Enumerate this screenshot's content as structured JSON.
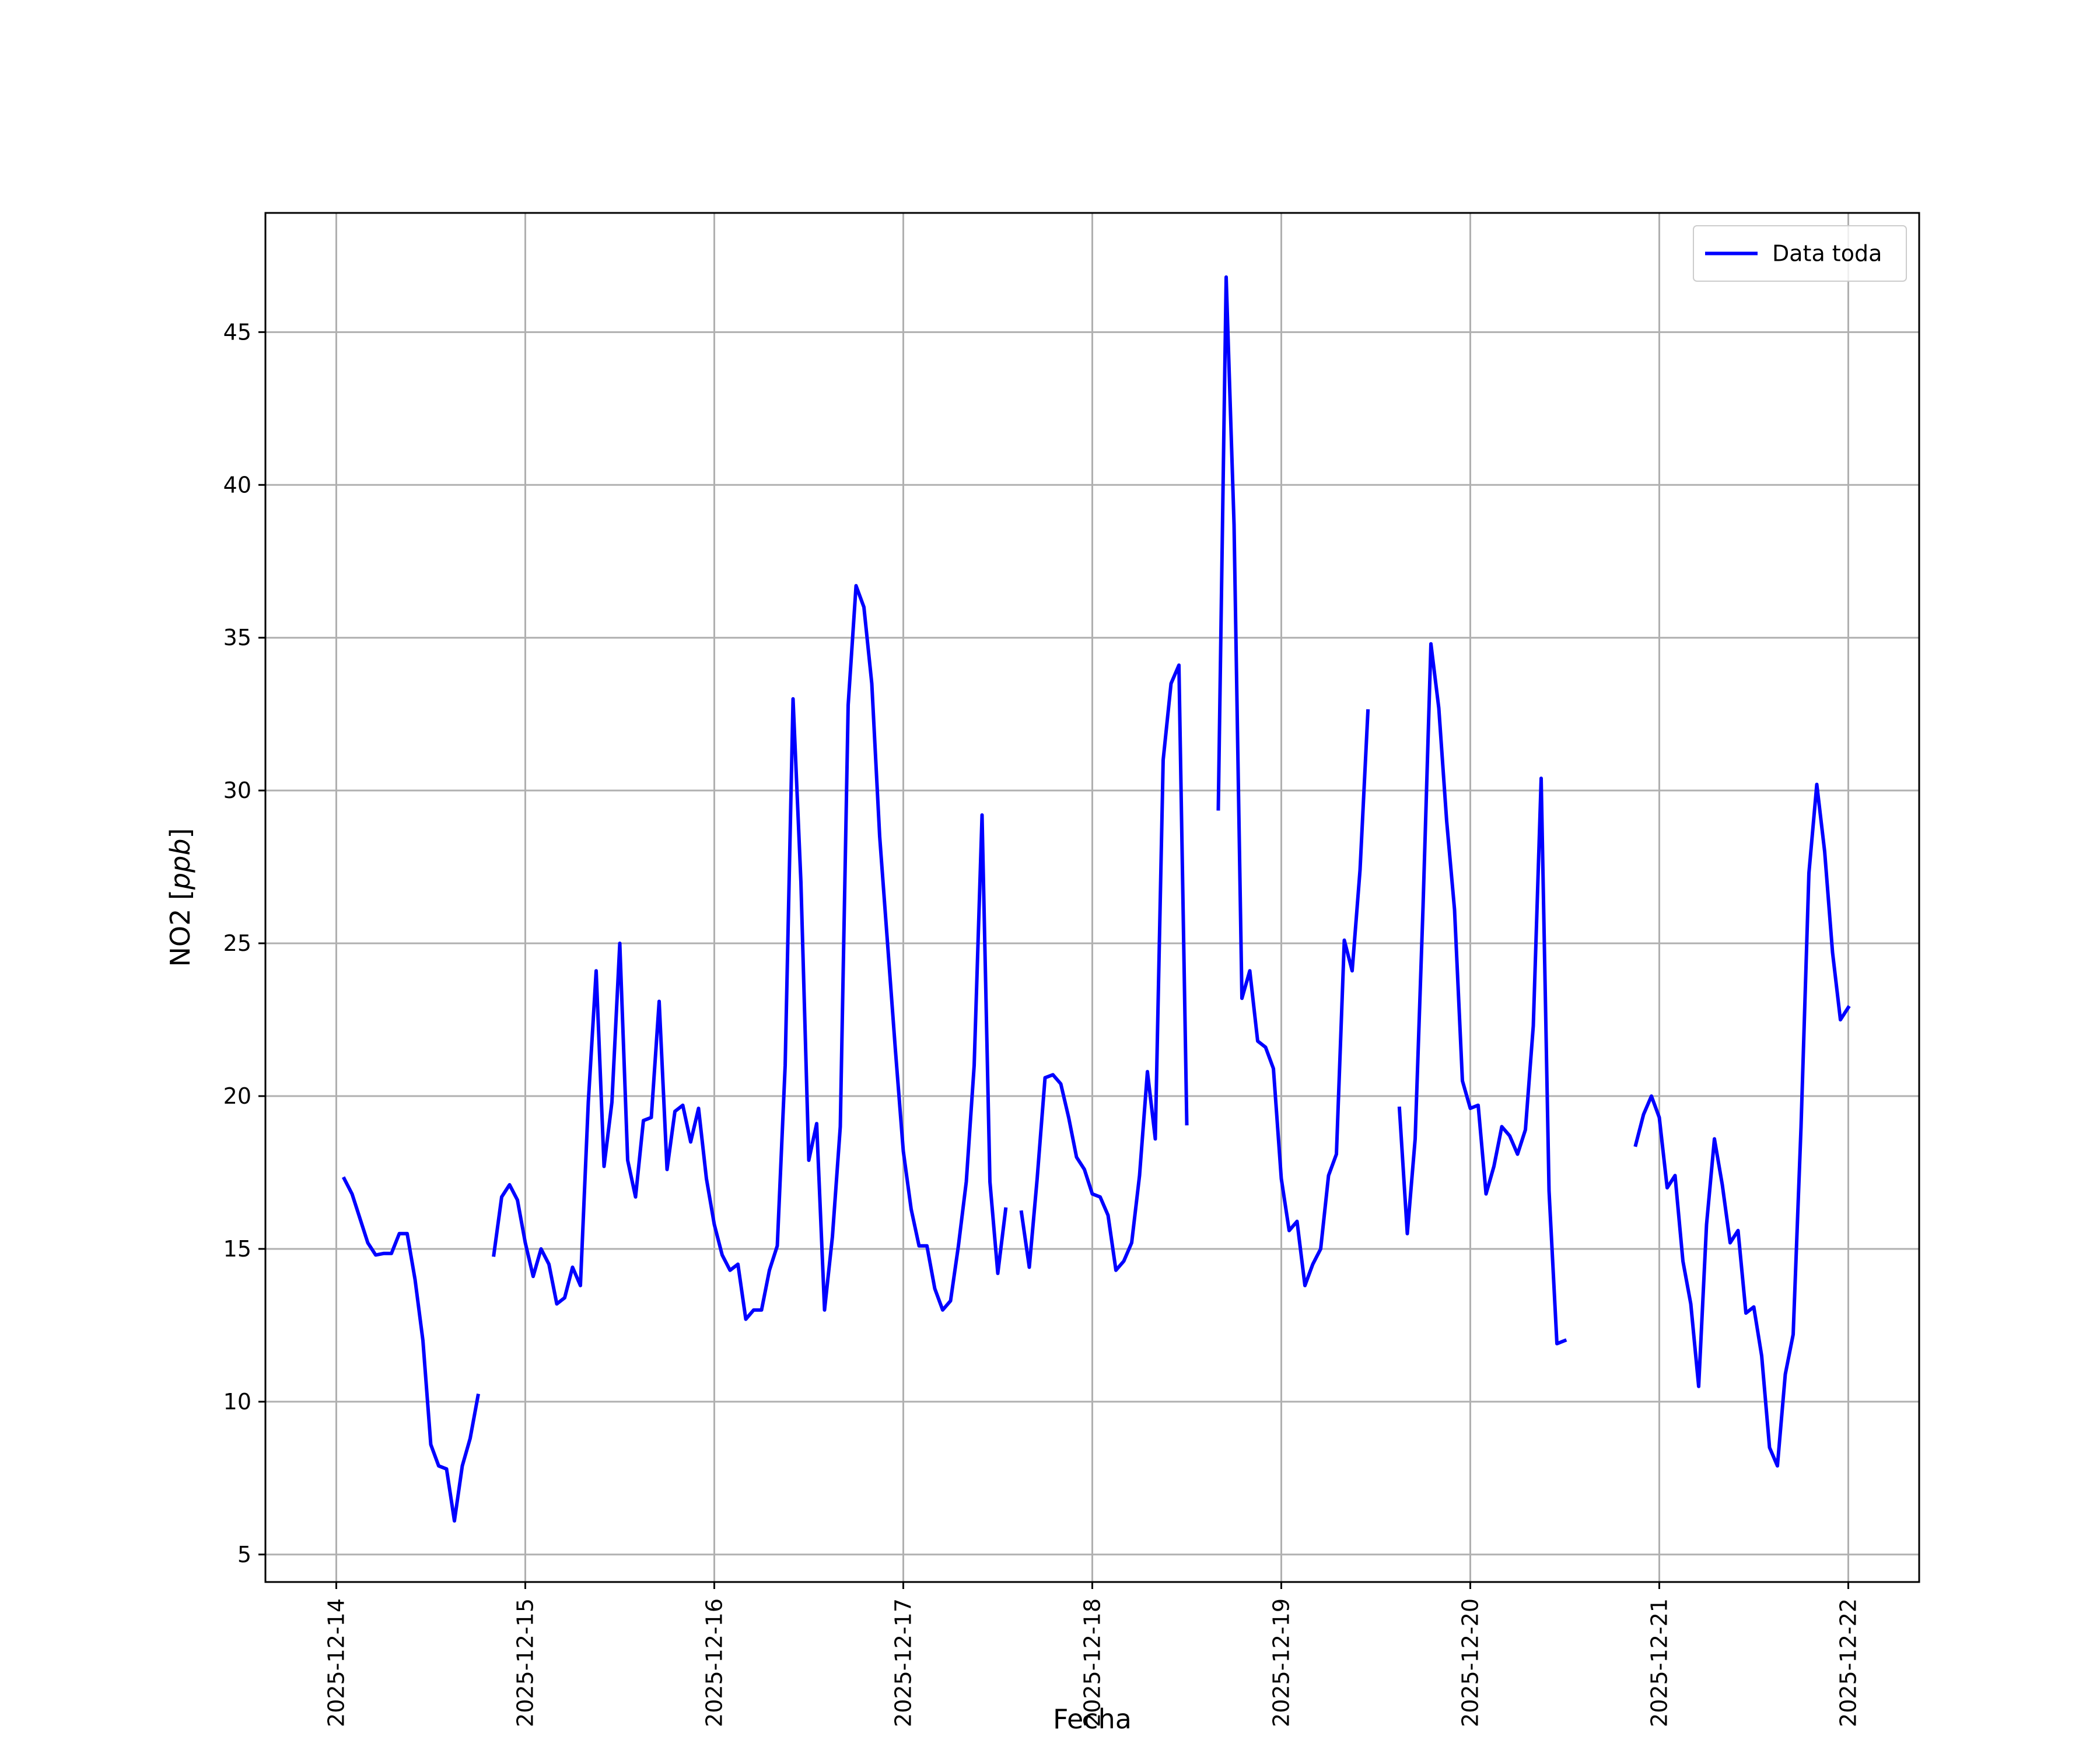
{
  "chart_data": {
    "type": "line",
    "title": "",
    "xlabel": "Fecha",
    "ylabel": "NO2 [ppb]",
    "ylabel_parts": {
      "main": "NO2 [",
      "italic": "ppb",
      "close": "]"
    },
    "xlim": [
      "2025-12-13T15:00",
      "2025-12-22T09:00"
    ],
    "ylim": [
      4.1,
      48.9
    ],
    "x_ticks": [
      "2025-12-14",
      "2025-12-15",
      "2025-12-16",
      "2025-12-17",
      "2025-12-18",
      "2025-12-19",
      "2025-12-20",
      "2025-12-21",
      "2025-12-22"
    ],
    "y_ticks": [
      5,
      10,
      15,
      20,
      25,
      30,
      35,
      40,
      45
    ],
    "grid": true,
    "legend": {
      "location": "top-right",
      "entries": [
        "Data toda"
      ]
    },
    "colors": {
      "line": "#0000ff",
      "grid": "#b0b0b0",
      "axis": "#000000"
    },
    "series": [
      {
        "name": "Data toda",
        "segments": [
          [
            [
              "2025-12-14T01:00",
              17.3
            ],
            [
              "2025-12-14T02:00",
              16.8
            ],
            [
              "2025-12-14T03:00",
              16.0
            ],
            [
              "2025-12-14T04:00",
              15.2
            ],
            [
              "2025-12-14T05:00",
              14.8
            ],
            [
              "2025-12-14T06:00",
              14.85
            ],
            [
              "2025-12-14T07:00",
              14.85
            ],
            [
              "2025-12-14T08:00",
              15.5
            ],
            [
              "2025-12-14T09:00",
              15.5
            ],
            [
              "2025-12-14T10:00",
              14.0
            ],
            [
              "2025-12-14T11:00",
              12.0
            ],
            [
              "2025-12-14T12:00",
              8.6
            ],
            [
              "2025-12-14T13:00",
              7.9
            ],
            [
              "2025-12-14T14:00",
              7.8
            ],
            [
              "2025-12-14T15:00",
              6.1
            ],
            [
              "2025-12-14T16:00",
              7.9
            ],
            [
              "2025-12-14T17:00",
              8.8
            ],
            [
              "2025-12-14T18:00",
              10.2
            ]
          ],
          [
            [
              "2025-12-14T20:00",
              14.8
            ],
            [
              "2025-12-14T21:00",
              16.7
            ],
            [
              "2025-12-14T22:00",
              17.1
            ],
            [
              "2025-12-14T23:00",
              16.6
            ],
            [
              "2025-12-15T00:00",
              15.2
            ],
            [
              "2025-12-15T01:00",
              14.1
            ],
            [
              "2025-12-15T02:00",
              15.0
            ],
            [
              "2025-12-15T03:00",
              14.5
            ],
            [
              "2025-12-15T04:00",
              13.2
            ],
            [
              "2025-12-15T05:00",
              13.4
            ],
            [
              "2025-12-15T06:00",
              14.4
            ],
            [
              "2025-12-15T07:00",
              13.8
            ],
            [
              "2025-12-15T08:00",
              19.8
            ],
            [
              "2025-12-15T09:00",
              24.1
            ],
            [
              "2025-12-15T10:00",
              17.7
            ],
            [
              "2025-12-15T11:00",
              19.8
            ],
            [
              "2025-12-15T12:00",
              25.0
            ],
            [
              "2025-12-15T13:00",
              17.9
            ],
            [
              "2025-12-15T14:00",
              16.7
            ],
            [
              "2025-12-15T15:00",
              19.2
            ],
            [
              "2025-12-15T16:00",
              19.3
            ],
            [
              "2025-12-15T17:00",
              23.1
            ],
            [
              "2025-12-15T18:00",
              17.6
            ],
            [
              "2025-12-15T19:00",
              19.5
            ],
            [
              "2025-12-15T20:00",
              19.7
            ],
            [
              "2025-12-15T21:00",
              18.5
            ],
            [
              "2025-12-15T22:00",
              19.6
            ],
            [
              "2025-12-15T23:00",
              17.3
            ],
            [
              "2025-12-16T00:00",
              15.8
            ],
            [
              "2025-12-16T01:00",
              14.8
            ],
            [
              "2025-12-16T02:00",
              14.3
            ],
            [
              "2025-12-16T03:00",
              14.5
            ],
            [
              "2025-12-16T04:00",
              12.7
            ],
            [
              "2025-12-16T05:00",
              13.0
            ],
            [
              "2025-12-16T06:00",
              13.0
            ],
            [
              "2025-12-16T07:00",
              14.3
            ],
            [
              "2025-12-16T08:00",
              15.1
            ],
            [
              "2025-12-16T09:00",
              21.0
            ],
            [
              "2025-12-16T10:00",
              33.0
            ],
            [
              "2025-12-16T11:00",
              27.0
            ],
            [
              "2025-12-16T12:00",
              17.9
            ],
            [
              "2025-12-16T13:00",
              19.1
            ],
            [
              "2025-12-16T14:00",
              13.0
            ],
            [
              "2025-12-16T15:00",
              15.4
            ],
            [
              "2025-12-16T16:00",
              19.0
            ],
            [
              "2025-12-16T17:00",
              32.8
            ],
            [
              "2025-12-16T18:00",
              36.7
            ],
            [
              "2025-12-16T19:00",
              36.0
            ],
            [
              "2025-12-16T20:00",
              33.5
            ],
            [
              "2025-12-16T21:00",
              28.5
            ],
            [
              "2025-12-16T22:00",
              25.0
            ],
            [
              "2025-12-16T23:00",
              21.5
            ],
            [
              "2025-12-17T00:00",
              18.2
            ],
            [
              "2025-12-17T01:00",
              16.3
            ],
            [
              "2025-12-17T02:00",
              15.1
            ],
            [
              "2025-12-17T03:00",
              15.1
            ],
            [
              "2025-12-17T04:00",
              13.7
            ],
            [
              "2025-12-17T05:00",
              13.0
            ],
            [
              "2025-12-17T06:00",
              13.3
            ],
            [
              "2025-12-17T07:00",
              15.1
            ],
            [
              "2025-12-17T08:00",
              17.2
            ],
            [
              "2025-12-17T09:00",
              21.0
            ],
            [
              "2025-12-17T10:00",
              29.2
            ],
            [
              "2025-12-17T11:00",
              17.2
            ],
            [
              "2025-12-17T12:00",
              14.2
            ],
            [
              "2025-12-17T13:00",
              16.3
            ]
          ],
          [
            [
              "2025-12-17T15:00",
              16.2
            ],
            [
              "2025-12-17T16:00",
              14.4
            ],
            [
              "2025-12-17T17:00",
              17.3
            ],
            [
              "2025-12-17T18:00",
              20.6
            ],
            [
              "2025-12-17T19:00",
              20.7
            ],
            [
              "2025-12-17T20:00",
              20.4
            ],
            [
              "2025-12-17T21:00",
              19.3
            ],
            [
              "2025-12-17T22:00",
              18.0
            ],
            [
              "2025-12-17T23:00",
              17.6
            ],
            [
              "2025-12-18T00:00",
              16.8
            ],
            [
              "2025-12-18T01:00",
              16.7
            ],
            [
              "2025-12-18T02:00",
              16.1
            ],
            [
              "2025-12-18T03:00",
              14.3
            ],
            [
              "2025-12-18T04:00",
              14.6
            ],
            [
              "2025-12-18T05:00",
              15.2
            ],
            [
              "2025-12-18T06:00",
              17.4
            ],
            [
              "2025-12-18T07:00",
              20.8
            ],
            [
              "2025-12-18T08:00",
              18.6
            ],
            [
              "2025-12-18T09:00",
              31.0
            ],
            [
              "2025-12-18T10:00",
              33.5
            ],
            [
              "2025-12-18T11:00",
              34.1
            ],
            [
              "2025-12-18T12:00",
              19.1
            ]
          ],
          [
            [
              "2025-12-18T16:00",
              29.4
            ],
            [
              "2025-12-18T17:00",
              46.8
            ],
            [
              "2025-12-18T18:00",
              38.7
            ],
            [
              "2025-12-18T19:00",
              23.2
            ],
            [
              "2025-12-18T20:00",
              24.1
            ],
            [
              "2025-12-18T21:00",
              21.8
            ],
            [
              "2025-12-18T22:00",
              21.6
            ],
            [
              "2025-12-18T23:00",
              20.9
            ],
            [
              "2025-12-19T00:00",
              17.3
            ],
            [
              "2025-12-19T01:00",
              15.6
            ],
            [
              "2025-12-19T02:00",
              15.9
            ],
            [
              "2025-12-19T03:00",
              13.8
            ],
            [
              "2025-12-19T04:00",
              14.5
            ],
            [
              "2025-12-19T05:00",
              15.0
            ],
            [
              "2025-12-19T06:00",
              17.4
            ],
            [
              "2025-12-19T07:00",
              18.1
            ],
            [
              "2025-12-19T08:00",
              25.1
            ],
            [
              "2025-12-19T09:00",
              24.1
            ],
            [
              "2025-12-19T10:00",
              27.4
            ],
            [
              "2025-12-19T11:00",
              32.6
            ]
          ],
          [
            [
              "2025-12-19T15:00",
              19.6
            ],
            [
              "2025-12-19T16:00",
              15.5
            ],
            [
              "2025-12-19T17:00",
              18.6
            ],
            [
              "2025-12-19T18:00",
              26.2
            ],
            [
              "2025-12-19T19:00",
              34.8
            ],
            [
              "2025-12-19T20:00",
              32.7
            ],
            [
              "2025-12-19T21:00",
              29.0
            ],
            [
              "2025-12-19T22:00",
              26.1
            ],
            [
              "2025-12-19T23:00",
              20.5
            ],
            [
              "2025-12-20T00:00",
              19.6
            ],
            [
              "2025-12-20T01:00",
              19.7
            ],
            [
              "2025-12-20T02:00",
              16.8
            ],
            [
              "2025-12-20T03:00",
              17.7
            ],
            [
              "2025-12-20T04:00",
              19.0
            ],
            [
              "2025-12-20T05:00",
              18.7
            ],
            [
              "2025-12-20T06:00",
              18.1
            ],
            [
              "2025-12-20T07:00",
              18.9
            ],
            [
              "2025-12-20T08:00",
              22.3
            ],
            [
              "2025-12-20T09:00",
              30.4
            ],
            [
              "2025-12-20T10:00",
              16.9
            ],
            [
              "2025-12-20T11:00",
              11.9
            ],
            [
              "2025-12-20T12:00",
              12.0
            ]
          ],
          [
            [
              "2025-12-20T21:00",
              18.4
            ],
            [
              "2025-12-20T22:00",
              19.4
            ],
            [
              "2025-12-20T23:00",
              20.0
            ],
            [
              "2025-12-21T00:00",
              19.3
            ],
            [
              "2025-12-21T01:00",
              17.0
            ],
            [
              "2025-12-21T02:00",
              17.4
            ],
            [
              "2025-12-21T03:00",
              14.6
            ],
            [
              "2025-12-21T04:00",
              13.2
            ],
            [
              "2025-12-21T05:00",
              10.5
            ],
            [
              "2025-12-21T06:00",
              15.8
            ],
            [
              "2025-12-21T07:00",
              18.6
            ],
            [
              "2025-12-21T08:00",
              17.1
            ],
            [
              "2025-12-21T09:00",
              15.2
            ],
            [
              "2025-12-21T10:00",
              15.6
            ],
            [
              "2025-12-21T11:00",
              12.9
            ],
            [
              "2025-12-21T12:00",
              13.1
            ],
            [
              "2025-12-21T13:00",
              11.5
            ],
            [
              "2025-12-21T14:00",
              8.5
            ],
            [
              "2025-12-21T15:00",
              7.9
            ],
            [
              "2025-12-21T16:00",
              10.9
            ],
            [
              "2025-12-21T17:00",
              12.2
            ],
            [
              "2025-12-21T18:00",
              19.0
            ],
            [
              "2025-12-21T19:00",
              27.3
            ],
            [
              "2025-12-21T20:00",
              30.2
            ],
            [
              "2025-12-21T21:00",
              28.0
            ],
            [
              "2025-12-21T22:00",
              24.7
            ],
            [
              "2025-12-21T23:00",
              22.5
            ],
            [
              "2025-12-22T00:00",
              22.9
            ]
          ]
        ]
      }
    ]
  }
}
